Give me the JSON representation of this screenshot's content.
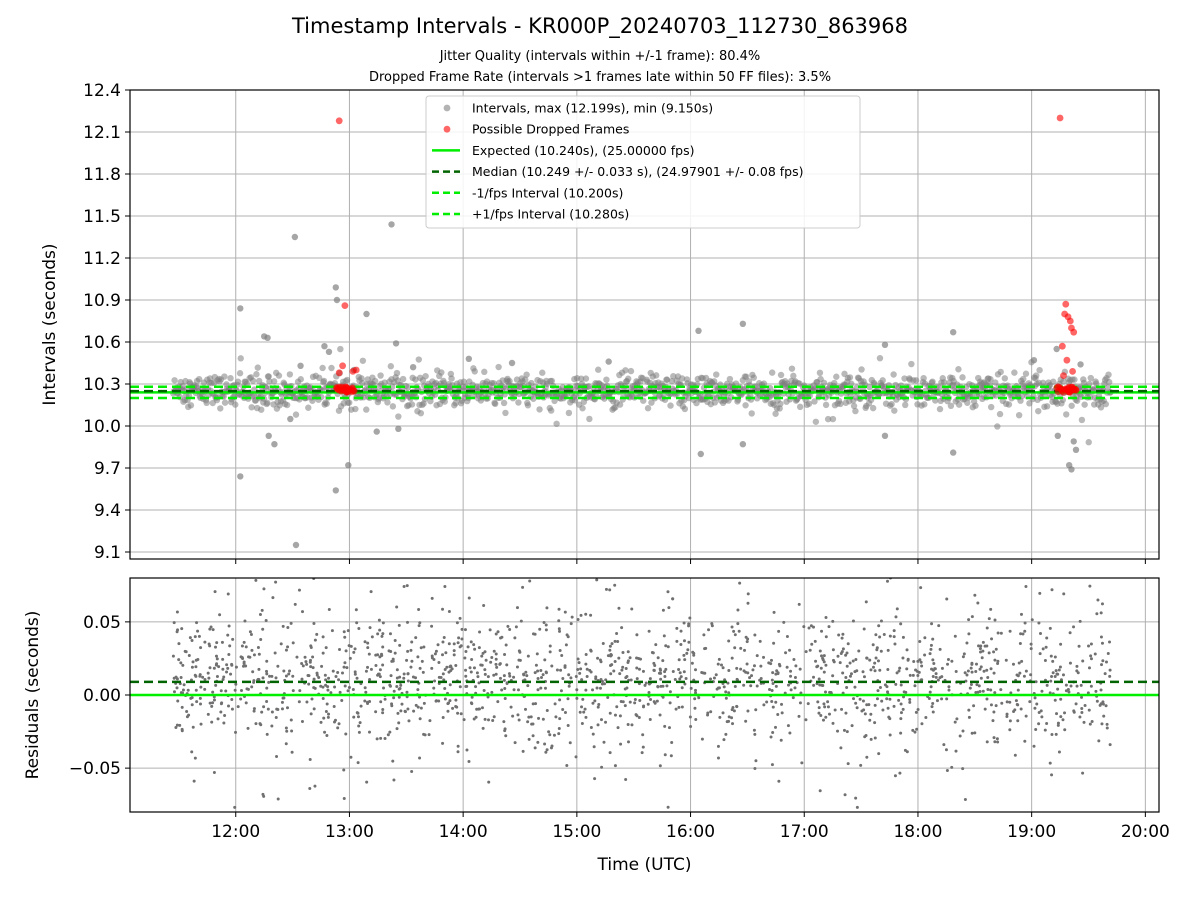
{
  "title": "Timestamp Intervals - KR000P_20240703_112730_863968",
  "subtitle_jitter": "Jitter Quality (intervals within +/-1 frame): 80.4%",
  "subtitle_dropped": "Dropped Frame Rate (intervals >1 frames late within 50 FF files): 3.5%",
  "colors": {
    "intervals": "#808080",
    "dropped": "#ff0000",
    "expected": "#00ee00",
    "median": "#006400",
    "fps_bounds": "#00ee00",
    "residuals": "#707070",
    "grid": "#b0b0b0"
  },
  "chart_data": [
    {
      "type": "scatter",
      "xlabel": "",
      "ylabel": "Intervals (seconds)",
      "xlim": [
        11.07,
        20.12
      ],
      "ylim": [
        9.05,
        12.4
      ],
      "yticks": [
        "9.1",
        "9.4",
        "9.7",
        "10.0",
        "10.3",
        "10.6",
        "10.9",
        "11.2",
        "11.5",
        "11.8",
        "12.1",
        "12.4"
      ],
      "grid": true,
      "legend_position": "top-center",
      "legend": [
        {
          "label": "Intervals, max (12.199s), min (9.150s)",
          "kind": "marker",
          "color": "#808080"
        },
        {
          "label": "Possible Dropped Frames",
          "kind": "marker",
          "color": "#ff0000"
        },
        {
          "label": "Expected (10.240s), (25.00000 fps)",
          "kind": "solid",
          "color": "#00ee00"
        },
        {
          "label": "Median (10.249 +/- 0.033 s), (24.97901 +/- 0.08 fps)",
          "kind": "dashed",
          "color": "#006400"
        },
        {
          "label": "-1/fps Interval (10.200s)",
          "kind": "dashed",
          "color": "#00ee00"
        },
        {
          "label": "+1/fps Interval (10.280s)",
          "kind": "dashed",
          "color": "#00ee00"
        }
      ],
      "reference_lines": [
        {
          "name": "expected",
          "y": 10.24,
          "style": "solid",
          "color": "#00ee00"
        },
        {
          "name": "median",
          "y": 10.249,
          "style": "dashed",
          "color": "#006400"
        },
        {
          "name": "minus_fps",
          "y": 10.2,
          "style": "dashed",
          "color": "#00ee00"
        },
        {
          "name": "plus_fps",
          "y": 10.28,
          "style": "dashed",
          "color": "#00ee00"
        }
      ],
      "summary": {
        "max": 12.199,
        "min": 9.15,
        "expected": 10.24,
        "median": 10.249,
        "time_start": "11:28",
        "time_end": "19:42"
      },
      "outliers": [
        [
          12.04,
          10.84
        ],
        [
          12.04,
          9.64
        ],
        [
          12.25,
          10.64
        ],
        [
          12.28,
          10.63
        ],
        [
          12.29,
          9.93
        ],
        [
          12.34,
          9.87
        ],
        [
          12.48,
          10.05
        ],
        [
          12.52,
          11.35
        ],
        [
          12.53,
          9.15
        ],
        [
          12.57,
          10.43
        ],
        [
          12.78,
          10.57
        ],
        [
          12.82,
          10.53
        ],
        [
          12.88,
          10.99
        ],
        [
          12.88,
          9.54
        ],
        [
          12.89,
          10.9
        ],
        [
          12.99,
          9.72
        ],
        [
          13.04,
          10.4
        ],
        [
          13.15,
          10.8
        ],
        [
          13.24,
          9.96
        ],
        [
          13.37,
          11.44
        ],
        [
          13.41,
          10.59
        ],
        [
          13.43,
          9.98
        ],
        [
          13.56,
          10.42
        ],
        [
          14.05,
          10.48
        ],
        [
          14.43,
          10.45
        ],
        [
          15.28,
          10.46
        ],
        [
          16.07,
          10.68
        ],
        [
          16.09,
          9.8
        ],
        [
          16.46,
          10.73
        ],
        [
          16.46,
          9.87
        ],
        [
          17.71,
          10.58
        ],
        [
          17.71,
          9.93
        ],
        [
          18.31,
          10.67
        ],
        [
          18.31,
          9.81
        ],
        [
          18.58,
          10.31
        ],
        [
          19.02,
          10.47
        ],
        [
          19.22,
          10.55
        ],
        [
          19.23,
          9.93
        ],
        [
          19.33,
          9.72
        ],
        [
          19.35,
          9.69
        ],
        [
          19.37,
          9.89
        ],
        [
          19.39,
          9.83
        ],
        [
          19.43,
          10.44
        ]
      ],
      "dropped_points": [
        [
          12.91,
          12.18
        ],
        [
          12.91,
          10.38
        ],
        [
          12.94,
          10.43
        ],
        [
          12.96,
          10.86
        ],
        [
          13.03,
          10.39
        ],
        [
          13.06,
          10.4
        ],
        [
          19.25,
          12.2
        ],
        [
          19.27,
          10.57
        ],
        [
          19.29,
          10.8
        ],
        [
          19.3,
          10.87
        ],
        [
          19.31,
          10.47
        ],
        [
          19.32,
          10.78
        ],
        [
          19.34,
          10.75
        ],
        [
          19.35,
          10.7
        ],
        [
          19.37,
          10.67
        ],
        [
          19.36,
          10.39
        ],
        [
          19.28,
          10.36
        ]
      ],
      "dropped_cluster_note_y": 10.26
    },
    {
      "type": "scatter",
      "xlabel": "Time (UTC)",
      "ylabel": "Residuals (seconds)",
      "xlim": [
        11.07,
        20.12
      ],
      "ylim": [
        -0.08,
        0.08
      ],
      "xticks": [
        {
          "value": 12,
          "label": "12:00"
        },
        {
          "value": 13,
          "label": "13:00"
        },
        {
          "value": 14,
          "label": "14:00"
        },
        {
          "value": 15,
          "label": "15:00"
        },
        {
          "value": 16,
          "label": "16:00"
        },
        {
          "value": 17,
          "label": "17:00"
        },
        {
          "value": 18,
          "label": "18:00"
        },
        {
          "value": 19,
          "label": "19:00"
        },
        {
          "value": 20,
          "label": "20:00"
        }
      ],
      "yticks": [
        {
          "value": -0.05,
          "label": "−0.05"
        },
        {
          "value": 0,
          "label": "0.00"
        },
        {
          "value": 0.05,
          "label": "0.05"
        }
      ],
      "grid": true,
      "reference_lines": [
        {
          "name": "zero",
          "y": 0.0,
          "style": "solid",
          "color": "#00ee00"
        },
        {
          "name": "median_residual",
          "y": 0.009,
          "style": "dashed",
          "color": "#006400"
        }
      ],
      "residual_spread": {
        "typical": 0.03,
        "count": 1700,
        "x_start": 11.45,
        "x_end": 19.7
      }
    }
  ]
}
